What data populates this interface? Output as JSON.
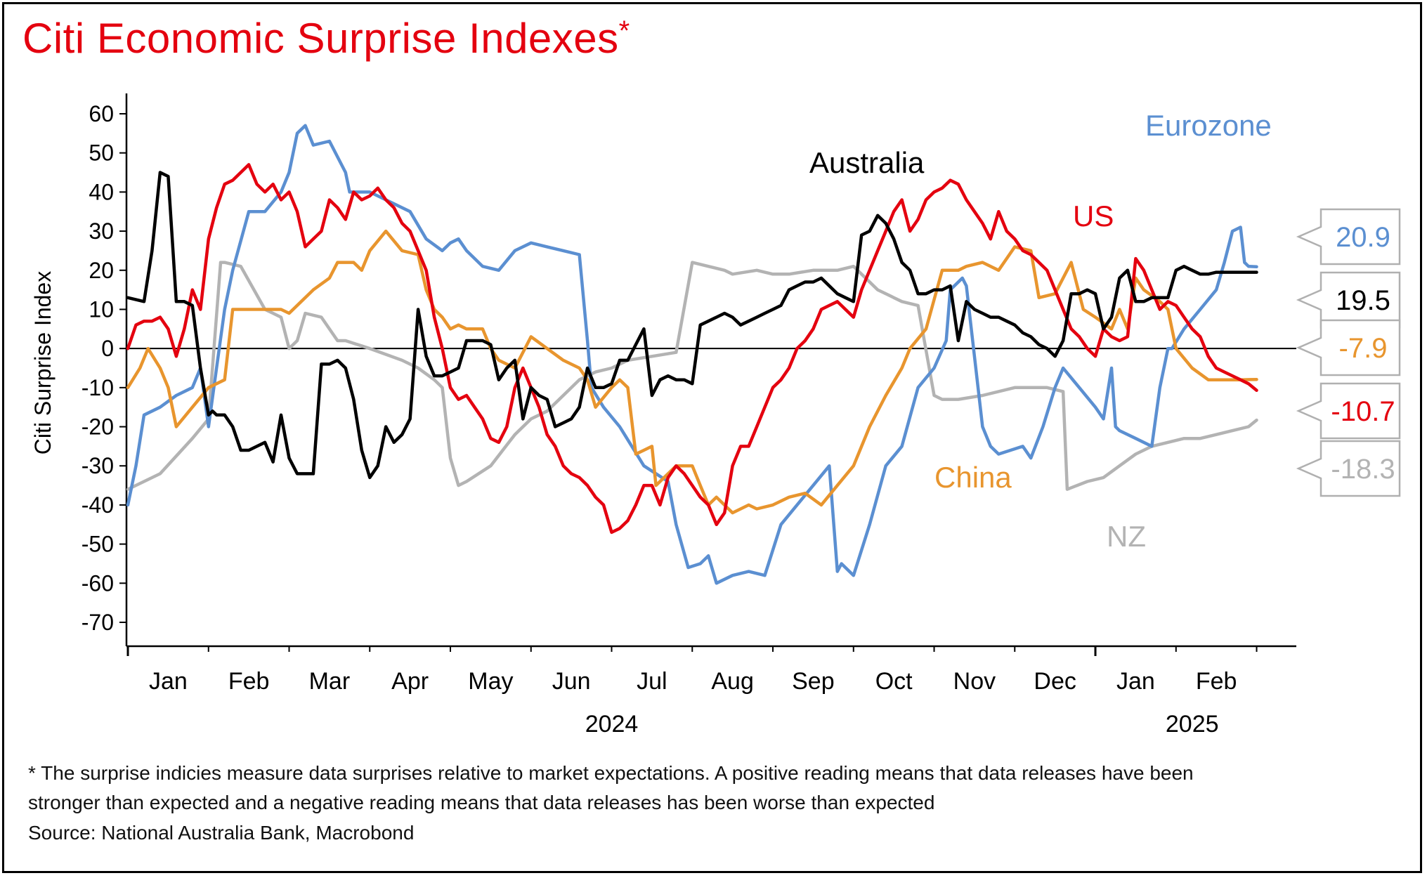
{
  "title": "Citi Economic Surprise Indexes",
  "title_mark": "*",
  "footnote_line1": "* The surprise indicies measure data surprises relative to market expectations. A positive reading means that data releases have been",
  "footnote_line2": "stronger than expected and a negative reading means that data releases has been worse than expected",
  "source": "Source: National Australia Bank, Macrobond",
  "chart_data": {
    "type": "line",
    "ylabel": "Citi Surprise Index",
    "ylim": [
      -75,
      60
    ],
    "yticks": [
      60,
      50,
      40,
      30,
      20,
      10,
      0,
      -10,
      -20,
      -30,
      -40,
      -50,
      -60,
      -70
    ],
    "xlim": [
      0,
      14.1
    ],
    "month_labels": [
      {
        "label": "Jan",
        "x": 0.5
      },
      {
        "label": "Feb",
        "x": 1.5
      },
      {
        "label": "Mar",
        "x": 2.5
      },
      {
        "label": "Apr",
        "x": 3.5
      },
      {
        "label": "May",
        "x": 4.5
      },
      {
        "label": "Jun",
        "x": 5.5
      },
      {
        "label": "Jul",
        "x": 6.5
      },
      {
        "label": "Aug",
        "x": 7.5
      },
      {
        "label": "Sep",
        "x": 8.5
      },
      {
        "label": "Oct",
        "x": 9.5
      },
      {
        "label": "Nov",
        "x": 10.5
      },
      {
        "label": "Dec",
        "x": 11.5
      },
      {
        "label": "Jan",
        "x": 12.5
      },
      {
        "label": "Feb",
        "x": 13.5
      }
    ],
    "year_labels": [
      {
        "label": "2024",
        "x": 6.0
      },
      {
        "label": "2025",
        "x": 13.2
      }
    ],
    "grid": false,
    "series": [
      {
        "name": "NZ",
        "color": "#b3b3b3",
        "x": [
          0.0,
          0.4,
          0.8,
          1.0,
          1.15,
          1.2,
          1.4,
          1.7,
          1.8,
          1.9,
          2.0,
          2.1,
          2.2,
          2.4,
          2.6,
          2.7,
          3.0,
          3.4,
          3.6,
          3.8,
          3.9,
          4.0,
          4.1,
          4.2,
          4.5,
          4.8,
          5.0,
          5.2,
          5.4,
          5.6,
          5.8,
          6.0,
          6.2,
          6.5,
          6.8,
          7.0,
          7.2,
          7.4,
          7.5,
          7.8,
          8.0,
          8.2,
          8.5,
          8.8,
          9.0,
          9.3,
          9.6,
          9.8,
          10.0,
          10.1,
          10.3,
          10.6,
          11.0,
          11.4,
          11.6,
          11.65,
          11.9,
          12.1,
          12.3,
          12.5,
          12.7,
          12.9,
          13.1,
          13.3,
          13.5,
          13.7,
          13.9,
          14.0
        ],
        "y": [
          -36,
          -32,
          -23,
          -18,
          22,
          22,
          21,
          10,
          9,
          8,
          0,
          2,
          9,
          8,
          2,
          2,
          0,
          -3,
          -5,
          -8,
          -10,
          -28,
          -35,
          -34,
          -30,
          -22,
          -18,
          -16,
          -12,
          -8,
          -6,
          -5,
          -3,
          -2,
          -1,
          22,
          21,
          20,
          19,
          20,
          19,
          19,
          20,
          20,
          21,
          15,
          12,
          11,
          -12,
          -13,
          -13,
          -12,
          -10,
          -10,
          -11,
          -36,
          -34,
          -33,
          -30,
          -27,
          -25,
          -24,
          -23,
          -23,
          -22,
          -21,
          -20,
          -18.3
        ]
      },
      {
        "name": "Eurozone",
        "color": "#5b8fd1",
        "x": [
          0.0,
          0.1,
          0.2,
          0.4,
          0.6,
          0.8,
          0.9,
          1.0,
          1.1,
          1.2,
          1.3,
          1.5,
          1.7,
          1.9,
          2.0,
          2.1,
          2.2,
          2.3,
          2.5,
          2.7,
          2.75,
          3.0,
          3.2,
          3.5,
          3.7,
          3.9,
          4.0,
          4.1,
          4.2,
          4.4,
          4.6,
          4.8,
          5.0,
          5.2,
          5.4,
          5.6,
          5.7,
          5.75,
          5.9,
          6.1,
          6.4,
          6.7,
          6.8,
          6.95,
          7.1,
          7.2,
          7.3,
          7.5,
          7.7,
          7.9,
          8.1,
          8.3,
          8.5,
          8.7,
          8.8,
          8.85,
          9.0,
          9.2,
          9.4,
          9.6,
          9.8,
          10.0,
          10.15,
          10.2,
          10.35,
          10.4,
          10.6,
          10.7,
          10.8,
          11.1,
          11.2,
          11.35,
          11.5,
          11.6,
          11.8,
          12.0,
          12.1,
          12.2,
          12.25,
          12.3,
          12.5,
          12.7,
          12.8,
          12.9,
          12.95,
          13.1,
          13.3,
          13.5,
          13.6,
          13.7,
          13.8,
          13.85,
          13.9,
          14.0
        ],
        "y": [
          -40,
          -30,
          -17,
          -15,
          -12,
          -10,
          -5,
          -20,
          -5,
          10,
          20,
          35,
          35,
          40,
          45,
          55,
          57,
          52,
          53,
          45,
          40,
          40,
          38,
          35,
          28,
          25,
          27,
          28,
          25,
          21,
          20,
          25,
          27,
          26,
          25,
          24,
          2,
          -10,
          -15,
          -20,
          -30,
          -34,
          -45,
          -56,
          -55,
          -53,
          -60,
          -58,
          -57,
          -58,
          -45,
          -40,
          -35,
          -30,
          -57,
          -55,
          -58,
          -45,
          -30,
          -25,
          -10,
          -5,
          2,
          15,
          18,
          16,
          -20,
          -25,
          -27,
          -25,
          -28,
          -20,
          -10,
          -5,
          -10,
          -15,
          -18,
          -5,
          -20,
          -21,
          -23,
          -25,
          -10,
          0,
          0,
          5,
          10,
          15,
          22,
          30,
          31,
          22,
          21,
          20.9
        ]
      },
      {
        "name": "China",
        "color": "#e8952e",
        "x": [
          0.0,
          0.15,
          0.25,
          0.4,
          0.5,
          0.6,
          0.8,
          1.0,
          1.2,
          1.3,
          1.6,
          1.9,
          2.0,
          2.3,
          2.5,
          2.6,
          2.8,
          2.9,
          3.0,
          3.2,
          3.4,
          3.6,
          3.7,
          3.8,
          3.9,
          4.0,
          4.1,
          4.2,
          4.4,
          4.5,
          4.6,
          4.8,
          5.0,
          5.2,
          5.4,
          5.6,
          5.7,
          5.8,
          6.0,
          6.1,
          6.2,
          6.3,
          6.4,
          6.5,
          6.55,
          6.8,
          7.0,
          7.1,
          7.2,
          7.3,
          7.5,
          7.7,
          7.8,
          8.0,
          8.2,
          8.4,
          8.6,
          8.8,
          9.0,
          9.2,
          9.4,
          9.6,
          9.7,
          9.9,
          10.1,
          10.3,
          10.4,
          10.6,
          10.8,
          11.0,
          11.2,
          11.3,
          11.5,
          11.7,
          11.85,
          12.0,
          12.2,
          12.3,
          12.4,
          12.5,
          12.6,
          12.8,
          12.9,
          13.0,
          13.2,
          13.4,
          13.6,
          13.8,
          14.0
        ],
        "y": [
          -10,
          -5,
          0,
          -5,
          -10,
          -20,
          -15,
          -10,
          -8,
          10,
          10,
          10,
          9,
          15,
          18,
          22,
          22,
          20,
          25,
          30,
          25,
          24,
          15,
          10,
          8,
          5,
          6,
          5,
          5,
          0,
          -3,
          -5,
          3,
          0,
          -3,
          -5,
          -8,
          -15,
          -10,
          -8,
          -10,
          -27,
          -26,
          -25,
          -35,
          -30,
          -30,
          -35,
          -40,
          -38,
          -42,
          -40,
          -41,
          -40,
          -38,
          -37,
          -40,
          -35,
          -30,
          -20,
          -12,
          -5,
          0,
          5,
          20,
          20,
          21,
          22,
          20,
          26,
          25,
          13,
          14,
          22,
          10,
          8,
          5,
          10,
          5,
          18,
          15,
          12,
          10,
          0,
          -5,
          -8,
          -8,
          -8,
          -7.9
        ]
      },
      {
        "name": "US",
        "color": "#e4000f",
        "x": [
          0.0,
          0.1,
          0.2,
          0.3,
          0.4,
          0.5,
          0.6,
          0.7,
          0.8,
          0.9,
          1.0,
          1.1,
          1.2,
          1.3,
          1.4,
          1.5,
          1.6,
          1.7,
          1.8,
          1.9,
          2.0,
          2.1,
          2.2,
          2.3,
          2.4,
          2.5,
          2.6,
          2.7,
          2.8,
          2.9,
          3.0,
          3.1,
          3.2,
          3.3,
          3.4,
          3.5,
          3.6,
          3.7,
          3.8,
          3.9,
          4.0,
          4.1,
          4.2,
          4.3,
          4.4,
          4.5,
          4.6,
          4.7,
          4.8,
          4.9,
          5.0,
          5.1,
          5.2,
          5.3,
          5.4,
          5.5,
          5.6,
          5.7,
          5.8,
          5.9,
          6.0,
          6.1,
          6.2,
          6.3,
          6.4,
          6.5,
          6.6,
          6.7,
          6.8,
          6.9,
          7.0,
          7.1,
          7.2,
          7.3,
          7.4,
          7.5,
          7.6,
          7.7,
          7.8,
          7.9,
          8.0,
          8.1,
          8.2,
          8.3,
          8.4,
          8.5,
          8.6,
          8.7,
          8.8,
          8.9,
          9.0,
          9.1,
          9.2,
          9.3,
          9.4,
          9.5,
          9.6,
          9.7,
          9.8,
          9.9,
          10.0,
          10.1,
          10.2,
          10.3,
          10.4,
          10.5,
          10.6,
          10.7,
          10.8,
          10.9,
          11.0,
          11.1,
          11.2,
          11.3,
          11.4,
          11.5,
          11.6,
          11.7,
          11.8,
          11.9,
          12.0,
          12.1,
          12.2,
          12.3,
          12.4,
          12.5,
          12.6,
          12.7,
          12.8,
          12.9,
          13.0,
          13.1,
          13.2,
          13.3,
          13.4,
          13.5,
          13.6,
          13.7,
          13.8,
          13.9,
          14.0
        ],
        "y": [
          0,
          6,
          7,
          7,
          8,
          5,
          -2,
          5,
          15,
          10,
          28,
          36,
          42,
          43,
          45,
          47,
          42,
          40,
          42,
          38,
          40,
          35,
          26,
          28,
          30,
          38,
          36,
          33,
          40,
          38,
          39,
          41,
          38,
          36,
          32,
          30,
          25,
          20,
          8,
          0,
          -10,
          -13,
          -12,
          -15,
          -18,
          -23,
          -24,
          -20,
          -10,
          -5,
          -10,
          -15,
          -22,
          -25,
          -30,
          -32,
          -33,
          -35,
          -38,
          -40,
          -47,
          -46,
          -44,
          -40,
          -35,
          -35,
          -40,
          -33,
          -30,
          -32,
          -35,
          -38,
          -40,
          -45,
          -42,
          -30,
          -25,
          -25,
          -20,
          -15,
          -10,
          -8,
          -5,
          0,
          2,
          5,
          10,
          11,
          12,
          10,
          8,
          15,
          20,
          25,
          30,
          35,
          38,
          30,
          33,
          38,
          40,
          41,
          43,
          42,
          38,
          35,
          32,
          28,
          35,
          30,
          28,
          25,
          24,
          22,
          20,
          15,
          10,
          5,
          3,
          0,
          -2,
          5,
          3,
          2,
          3,
          23,
          20,
          15,
          10,
          12,
          11,
          8,
          5,
          3,
          -2,
          -5,
          -6,
          -7,
          -8,
          -9,
          -10.7
        ]
      },
      {
        "name": "Australia",
        "color": "#000000",
        "x": [
          0.0,
          0.2,
          0.3,
          0.4,
          0.5,
          0.6,
          0.7,
          0.8,
          0.9,
          1.0,
          1.05,
          1.1,
          1.2,
          1.3,
          1.4,
          1.5,
          1.6,
          1.7,
          1.8,
          1.9,
          2.0,
          2.1,
          2.2,
          2.3,
          2.4,
          2.5,
          2.6,
          2.7,
          2.8,
          2.9,
          3.0,
          3.1,
          3.2,
          3.3,
          3.4,
          3.5,
          3.6,
          3.7,
          3.8,
          3.9,
          4.0,
          4.1,
          4.2,
          4.3,
          4.4,
          4.5,
          4.6,
          4.7,
          4.8,
          4.9,
          5.0,
          5.1,
          5.2,
          5.3,
          5.4,
          5.5,
          5.6,
          5.7,
          5.8,
          5.9,
          6.0,
          6.1,
          6.2,
          6.3,
          6.4,
          6.5,
          6.6,
          6.7,
          6.8,
          6.9,
          7.0,
          7.1,
          7.2,
          7.3,
          7.4,
          7.5,
          7.6,
          7.7,
          7.8,
          7.9,
          8.0,
          8.1,
          8.2,
          8.3,
          8.4,
          8.5,
          8.6,
          8.7,
          8.8,
          8.9,
          9.0,
          9.1,
          9.2,
          9.3,
          9.4,
          9.5,
          9.6,
          9.7,
          9.8,
          9.9,
          10.0,
          10.1,
          10.2,
          10.3,
          10.4,
          10.5,
          10.6,
          10.7,
          10.8,
          10.9,
          11.0,
          11.1,
          11.2,
          11.3,
          11.4,
          11.5,
          11.6,
          11.7,
          11.8,
          11.9,
          12.0,
          12.1,
          12.2,
          12.3,
          12.4,
          12.5,
          12.6,
          12.7,
          12.8,
          12.9,
          13.0,
          13.1,
          13.2,
          13.3,
          13.4,
          13.5,
          13.6,
          13.7,
          13.8,
          13.9,
          14.0
        ],
        "y": [
          13,
          12,
          25,
          45,
          44,
          12,
          12,
          11,
          -5,
          -17,
          -16,
          -17,
          -17,
          -20,
          -26,
          -26,
          -25,
          -24,
          -29,
          -17,
          -28,
          -32,
          -32,
          -32,
          -4,
          -4,
          -3,
          -5,
          -13,
          -26,
          -33,
          -30,
          -20,
          -24,
          -22,
          -18,
          10,
          -2,
          -7,
          -7,
          -6,
          -5,
          2,
          2,
          2,
          1,
          -8,
          -5,
          -3,
          -18,
          -10,
          -12,
          -13,
          -20,
          -19,
          -18,
          -15,
          -5,
          -10,
          -10,
          -9,
          -3,
          -3,
          1,
          5,
          -12,
          -8,
          -7,
          -8,
          -8,
          -9,
          6,
          7,
          8,
          9,
          8,
          6,
          7,
          8,
          9,
          10,
          11,
          15,
          16,
          17,
          17,
          18,
          16,
          14,
          13,
          12,
          29,
          30,
          34,
          32,
          28,
          22,
          20,
          14,
          14,
          15,
          15,
          16,
          2,
          12,
          10,
          9,
          8,
          8,
          7,
          6,
          4,
          3,
          1,
          0,
          -2,
          2,
          14,
          14,
          15,
          14,
          5,
          8,
          18,
          20,
          12,
          12,
          13,
          13,
          13,
          20,
          21,
          20,
          19,
          19,
          19.5,
          19.5,
          19.5,
          19.5,
          19.5,
          19.5
        ]
      }
    ],
    "series_labels": [
      {
        "name": "Eurozone",
        "text": "Eurozone",
        "color": "#5b8fd1"
      },
      {
        "name": "Australia",
        "text": "Australia",
        "color": "#000000"
      },
      {
        "name": "US",
        "text": "US",
        "color": "#e4000f"
      },
      {
        "name": "China",
        "text": "China",
        "color": "#e8952e"
      },
      {
        "name": "NZ",
        "text": "NZ",
        "color": "#b3b3b3"
      }
    ],
    "end_values": [
      {
        "name": "Eurozone",
        "text": "20.9",
        "value": 20.9,
        "color": "#5b8fd1"
      },
      {
        "name": "Australia",
        "text": "19.5",
        "value": 19.5,
        "color": "#000000"
      },
      {
        "name": "China",
        "text": "-7.9",
        "value": -7.9,
        "color": "#e8952e"
      },
      {
        "name": "US",
        "text": "-10.7",
        "value": -10.7,
        "color": "#e4000f"
      },
      {
        "name": "NZ",
        "text": "-18.3",
        "value": -18.3,
        "color": "#b3b3b3"
      }
    ]
  }
}
